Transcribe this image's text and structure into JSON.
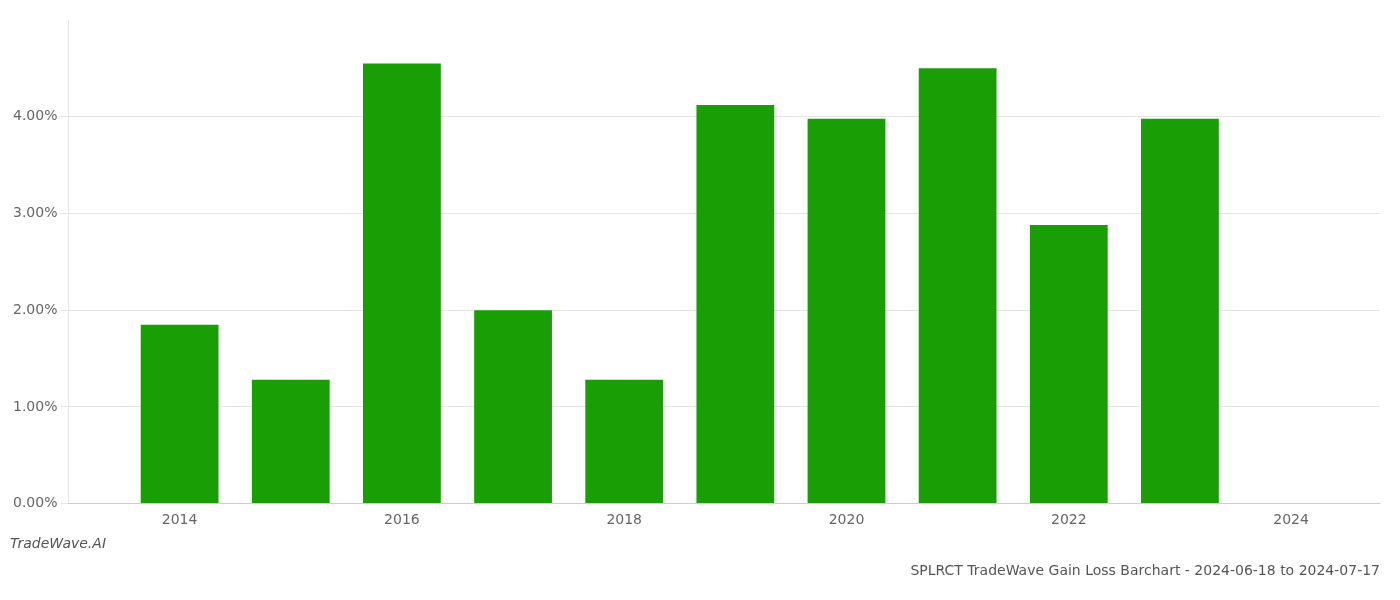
{
  "chart_data": {
    "type": "bar",
    "title": "SPLRCT TradeWave Gain Loss Barchart - 2024-06-18 to 2024-07-17",
    "annotations": [
      "TradeWave.AI"
    ],
    "x": [
      2014,
      2015,
      2016,
      2017,
      2018,
      2019,
      2020,
      2021,
      2022,
      2023
    ],
    "values": [
      0.0185,
      0.0128,
      0.0455,
      0.02,
      0.0128,
      0.0412,
      0.0398,
      0.045,
      0.0288,
      0.0398
    ],
    "color": "#1a9e06",
    "xlim": [
      2013.0,
      2024.8
    ],
    "xticks": [
      2014,
      2016,
      2018,
      2020,
      2022,
      2024
    ],
    "ylim": [
      0,
      0.05
    ],
    "yticks": [
      {
        "value": 0.0,
        "label": "0.00%"
      },
      {
        "value": 0.01,
        "label": "1.00%"
      },
      {
        "value": 0.02,
        "label": "2.00%"
      },
      {
        "value": 0.03,
        "label": "3.00%"
      },
      {
        "value": 0.04,
        "label": "4.00%"
      }
    ],
    "grid": true
  }
}
